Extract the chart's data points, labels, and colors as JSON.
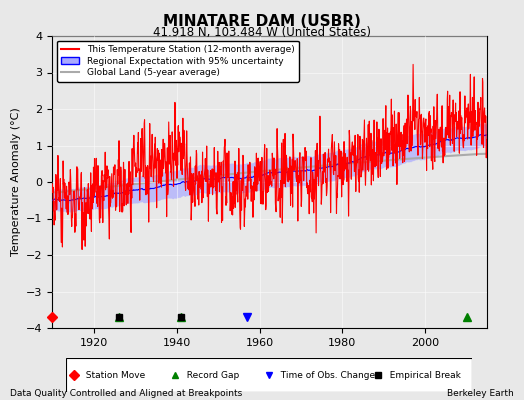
{
  "title": "MINATARE DAM (USBR)",
  "subtitle": "41.918 N, 103.484 W (United States)",
  "footer_left": "Data Quality Controlled and Aligned at Breakpoints",
  "footer_right": "Berkeley Earth",
  "ylabel": "Temperature Anomaly (°C)",
  "xlim": [
    1910,
    2015
  ],
  "ylim": [
    -4,
    4
  ],
  "yticks": [
    -4,
    -3,
    -2,
    -1,
    0,
    1,
    2,
    3,
    4
  ],
  "xticks": [
    1920,
    1940,
    1960,
    1980,
    2000
  ],
  "bg_color": "#e8e8e8",
  "plot_bg_color": "#e8e8e8",
  "red_color": "#ff0000",
  "blue_color": "#0000ff",
  "blue_fill_color": "#aaaaff",
  "gray_color": "#aaaaaa",
  "seed": 42,
  "markers": {
    "station_move": {
      "year": 1910,
      "color": "red",
      "marker": "D",
      "label": "Station Move"
    },
    "record_gap1": {
      "year": 1926,
      "color": "green",
      "marker": "^",
      "label": "Record Gap"
    },
    "record_gap2": {
      "year": 1941,
      "color": "green",
      "marker": "^",
      "label": "Record Gap"
    },
    "record_gap3": {
      "year": 2010,
      "color": "green",
      "marker": "^",
      "label": "Record Gap"
    },
    "time_obs1": {
      "year": 1957,
      "color": "blue",
      "marker": "v",
      "label": "Time of Obs. Change"
    },
    "empirical1": {
      "year": 1926,
      "color": "black",
      "marker": "s",
      "label": "Empirical Break"
    },
    "empirical2": {
      "year": 1941,
      "color": "black",
      "marker": "s",
      "label": "Empirical Break"
    }
  }
}
